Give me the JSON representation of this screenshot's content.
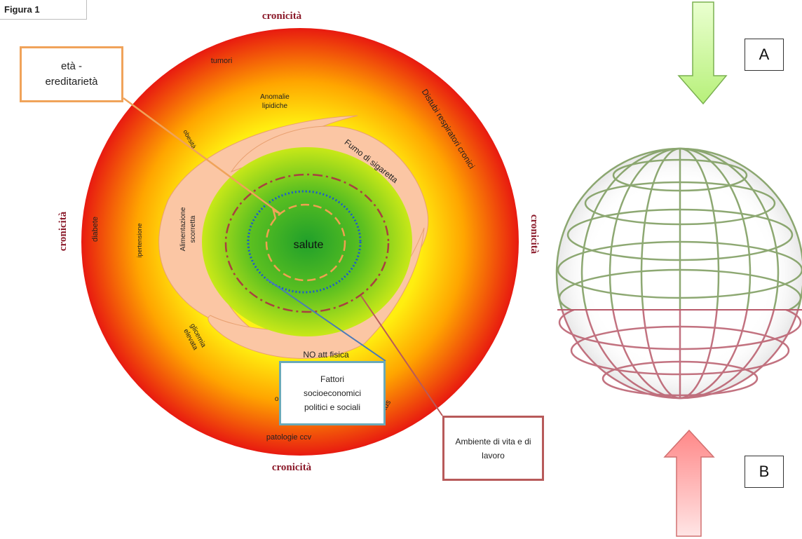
{
  "figure_label": "Figura 1",
  "chronicity": {
    "top": "cronicità",
    "bottom": "cronicità",
    "left": "cronicità",
    "right": "cronicità"
  },
  "center": {
    "label": "salute"
  },
  "outer_ring_labels": {
    "tumori": "tumori",
    "anomalie": "Anomalie lipidiche",
    "respiratori": "Distubi respiratori cronici",
    "diabete": "diabete",
    "ipertensione": "ipertensione",
    "obesita_top": "obesità",
    "glicemia": "glicemia elevata",
    "obesita_bottom": "obesità",
    "ictus": "ictus",
    "patologie": "patologie ccv"
  },
  "risk_factors": {
    "fumo": "Fumo di sigaretta",
    "alimentazione": "Alimentazione scorretta",
    "no_att": "NO att fisica"
  },
  "callouts": {
    "eta_line1": "età -",
    "eta_line2": "ereditarietà",
    "fattori": "Fattori socioeconomici politici e sociali",
    "ambiente": "Ambiente di vita e di lavoro"
  },
  "boxes": {
    "a": "A",
    "b": "B"
  },
  "colors": {
    "outer": "#e81a10",
    "mid": "#ffe600",
    "inner_green": "#2ea82a",
    "lime": "#b8e01a",
    "peach": "#fbc6a4",
    "chronicity_text": "#8b1a2a",
    "arrow_green": "#c9f59a",
    "arrow_red": "#fba8a8",
    "globe_green": "#7a9a5a",
    "globe_red": "#b85a6a"
  }
}
